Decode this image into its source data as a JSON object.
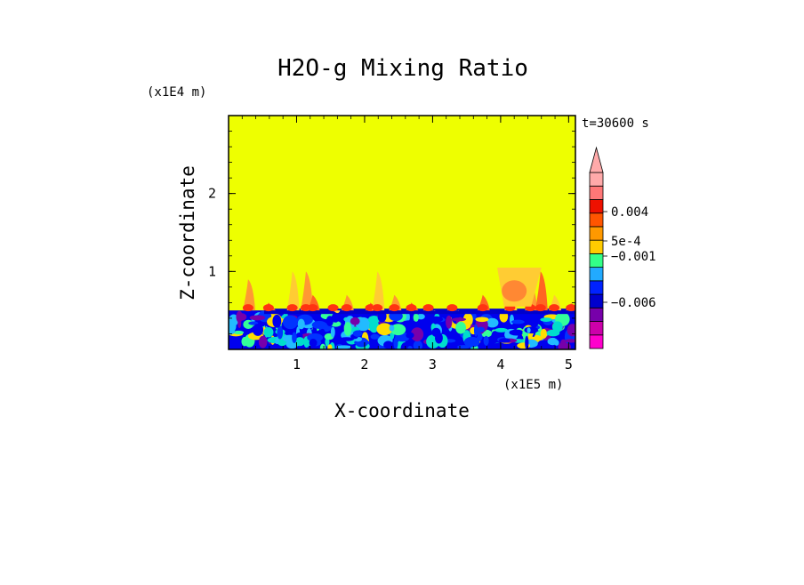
{
  "chart_data": {
    "type": "heatmap",
    "title": "H2O-g Mixing Ratio",
    "xlabel": "X-coordinate",
    "ylabel": "Z-coordinate",
    "x_scale_label": "(x1E5 m)",
    "y_scale_label": "(x1E4 m)",
    "time_label": "t=30600 s",
    "xlim": [
      0,
      5.1
    ],
    "ylim": [
      0,
      3.0
    ],
    "x_ticks": [
      {
        "value": 1,
        "label": "1"
      },
      {
        "value": 2,
        "label": "2"
      },
      {
        "value": 3,
        "label": "3"
      },
      {
        "value": 4,
        "label": "4"
      },
      {
        "value": 5,
        "label": "5"
      }
    ],
    "y_ticks": [
      {
        "value": 1,
        "label": "1"
      },
      {
        "value": 2,
        "label": "2"
      }
    ],
    "colorbar": {
      "colors": [
        "#ff00cc",
        "#cc00aa",
        "#7700aa",
        "#0000cc",
        "#0022ff",
        "#22aaff",
        "#33ff88",
        "#ffcc00",
        "#ff9900",
        "#ff5500",
        "#ee1100",
        "#ff7777",
        "#ffaaaa"
      ],
      "labels": [
        {
          "value": "0.004",
          "level": 0.004
        },
        {
          "value": "5e-4",
          "level": 0.0005
        },
        {
          "value": "−0.001",
          "level": -0.001
        },
        {
          "value": "−0.006",
          "level": -0.006
        }
      ],
      "extend": "max"
    },
    "field": {
      "background_color": "#eeff00",
      "boundary_layer_top": 0.5,
      "plume_colors": [
        "#ff9933",
        "#ff6622",
        "#ffcc33"
      ],
      "layer_colors": [
        "#0000ee",
        "#0033ff",
        "#22bbff",
        "#33ff99",
        "#00ddcc",
        "#ffdd00",
        "#7700aa"
      ]
    }
  }
}
